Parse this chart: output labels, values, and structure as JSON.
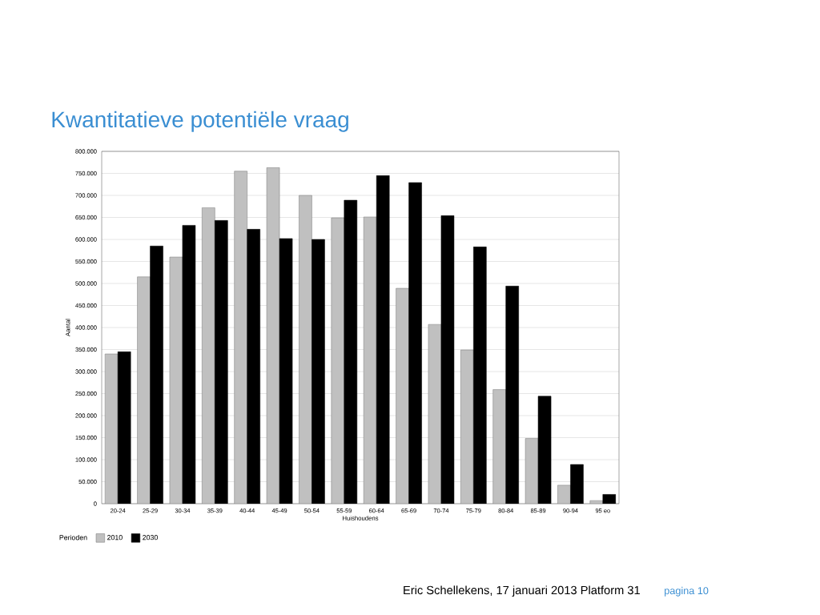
{
  "chart_data": {
    "type": "bar",
    "title": "Kwantitatieve potentiële vraag",
    "xlabel": "Huishoudens",
    "ylabel": "Aantal",
    "legend_title": "Perioden",
    "categories": [
      "20-24",
      "25-29",
      "30-34",
      "35-39",
      "40-44",
      "45-49",
      "50-54",
      "55-59",
      "60-64",
      "65-69",
      "70-74",
      "75-79",
      "80-84",
      "85-89",
      "90-94",
      "95 eo"
    ],
    "series": [
      {
        "name": "2010",
        "color": "#c0c0c0",
        "values": [
          340000,
          515000,
          560000,
          672000,
          755000,
          763000,
          700000,
          649000,
          651000,
          489000,
          407000,
          349000,
          259000,
          148000,
          42000,
          7000
        ]
      },
      {
        "name": "2030",
        "color": "#000000",
        "values": [
          345000,
          585000,
          632000,
          643000,
          623000,
          602000,
          600000,
          689000,
          745000,
          729000,
          654000,
          583000,
          494000,
          244000,
          89000,
          21000
        ]
      }
    ],
    "ylim": [
      0,
      800000
    ],
    "yticks": [
      0,
      {
        "value": 50000,
        "label": "50.000"
      },
      {
        "value": 100000,
        "label": "100.000"
      },
      {
        "value": 150000,
        "label": "150.000"
      },
      {
        "value": 200000,
        "label": "200.000"
      },
      {
        "value": 250000,
        "label": "250.000"
      },
      {
        "value": 300000,
        "label": "300.000"
      },
      {
        "value": 350000,
        "label": "350.000"
      },
      {
        "value": 400000,
        "label": "400.000"
      },
      {
        "value": 450000,
        "label": "450.000"
      },
      {
        "value": 500000,
        "label": "500.000"
      },
      {
        "value": 550000,
        "label": "550.000"
      },
      {
        "value": 600000,
        "label": "600.000"
      },
      {
        "value": 650000,
        "label": "650.000"
      },
      {
        "value": 700000,
        "label": "700.000"
      },
      {
        "value": 750000,
        "label": "750.000"
      },
      {
        "value": 800000,
        "label": "800.000"
      }
    ],
    "grid": "y",
    "legend": "bottom left",
    "annotations": [
      "Eric Schellekens, 17 januari 2013 Platform 31",
      "pagina 10"
    ]
  }
}
